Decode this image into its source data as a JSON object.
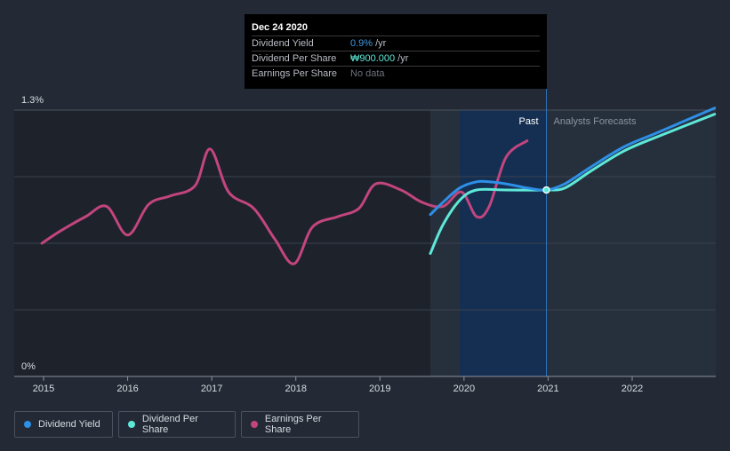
{
  "tooltip": {
    "date": "Dec 24 2020",
    "rows": [
      {
        "label": "Dividend Yield",
        "value": "0.9%",
        "unit": "/yr"
      },
      {
        "label": "Dividend Per Share",
        "value": "₩900.000",
        "unit": "/yr"
      },
      {
        "label": "Earnings Per Share",
        "value": "No data",
        "unit": ""
      }
    ]
  },
  "legend": [
    {
      "label": "Dividend Yield",
      "color": "#2e8fe6"
    },
    {
      "label": "Dividend Per Share",
      "color": "#5ee8d8"
    },
    {
      "label": "Earnings Per Share",
      "color": "#c2457e"
    }
  ],
  "labels": {
    "past": "Past",
    "forecast": "Analysts Forecasts"
  },
  "chart_data": {
    "type": "line",
    "title": "",
    "xlabel": "",
    "ylabel": "",
    "ylim": [
      0,
      1.3
    ],
    "y_tick_labels": [
      "0%",
      "1.3%"
    ],
    "x_ticks": [
      2015,
      2016,
      2017,
      2018,
      2019,
      2020,
      2021,
      2022
    ],
    "xlim": [
      2014.65,
      2022.98
    ],
    "past_end": 2020.98,
    "shade_start": 2019.95,
    "forecast_area_start": 2019.6,
    "highlight_x": 2020.98,
    "series": [
      {
        "name": "Dividend Yield",
        "color": "#2e8fe6",
        "x": [
          2019.6,
          2019.75,
          2019.95,
          2020.15,
          2020.3,
          2020.5,
          2020.75,
          2020.98,
          2021.2,
          2021.5,
          2021.9,
          2022.3,
          2022.98
        ],
        "y": [
          0.79,
          0.85,
          0.92,
          0.95,
          0.95,
          0.94,
          0.92,
          0.91,
          0.94,
          1.02,
          1.12,
          1.19,
          1.31
        ]
      },
      {
        "name": "Dividend Per Share",
        "color": "#5ee8d8",
        "x": [
          2019.6,
          2019.75,
          2019.95,
          2020.15,
          2020.5,
          2020.98,
          2021.2,
          2021.5,
          2021.9,
          2022.3,
          2022.98
        ],
        "y": [
          0.6,
          0.74,
          0.86,
          0.91,
          0.91,
          0.91,
          0.92,
          1.0,
          1.1,
          1.17,
          1.28
        ]
      },
      {
        "name": "Earnings Per Share",
        "color": "#c2457e",
        "x": [
          2014.98,
          2015.2,
          2015.5,
          2015.75,
          2016.0,
          2016.25,
          2016.5,
          2016.8,
          2016.98,
          2017.2,
          2017.5,
          2017.75,
          2017.98,
          2018.2,
          2018.5,
          2018.75,
          2018.95,
          2019.25,
          2019.5,
          2019.75,
          2019.97,
          2020.15,
          2020.3,
          2020.5,
          2020.75
        ],
        "y": [
          0.65,
          0.71,
          0.78,
          0.83,
          0.69,
          0.84,
          0.88,
          0.93,
          1.11,
          0.9,
          0.82,
          0.67,
          0.55,
          0.73,
          0.78,
          0.82,
          0.94,
          0.91,
          0.85,
          0.83,
          0.9,
          0.78,
          0.83,
          1.07,
          1.15
        ]
      }
    ]
  }
}
